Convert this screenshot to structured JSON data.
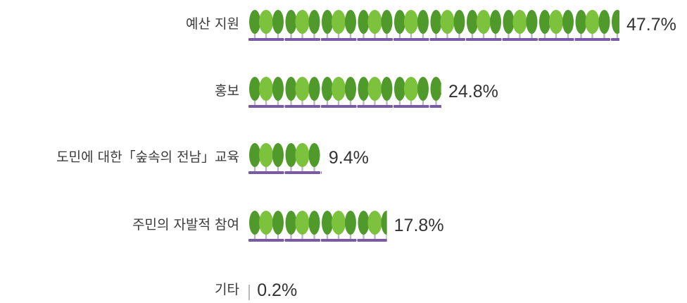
{
  "chart_data": {
    "type": "bar",
    "title": "",
    "xlabel": "",
    "ylabel": "",
    "unit": "%",
    "categories": [
      "예산 지원",
      "홍보",
      "도민에 대한「숲속의 전남」교육",
      "주민의 자발적 참여",
      "기타"
    ],
    "values": [
      47.7,
      24.8,
      9.4,
      17.8,
      0.2
    ],
    "value_labels": [
      "47.7%",
      "24.8%",
      "9.4%",
      "17.8%",
      "0.2%"
    ],
    "xlim": [
      0,
      47.7
    ],
    "grid": false,
    "legend": "none",
    "orientation": "horizontal",
    "mark_style": "tree-icons",
    "colors": {
      "tree_dark": "#4f9a2a",
      "tree_light": "#7cc23c",
      "trunk": "#b9b9b9",
      "ground": "#7a5aa6"
    }
  }
}
